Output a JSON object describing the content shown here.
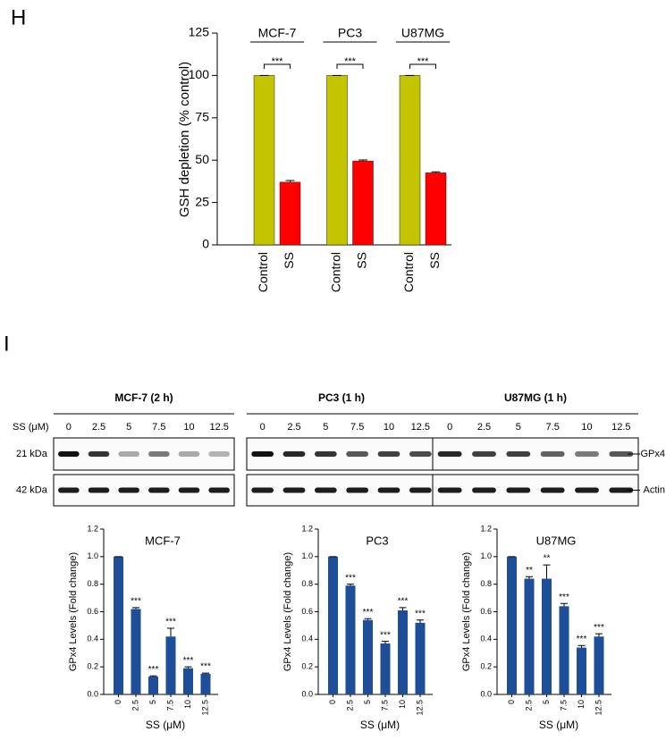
{
  "chart_data": [
    {
      "type": "grouped-bar",
      "panel": "H",
      "ylabel": "GSH depletion (% control)",
      "ylim": [
        0,
        125
      ],
      "yticks": [
        0,
        25,
        50,
        75,
        100,
        125
      ],
      "colors": [
        "#c4c400",
        "#ff0000"
      ],
      "groups": [
        {
          "label": "MCF-7",
          "categories": [
            "Control",
            "SS"
          ],
          "values": [
            100,
            37
          ],
          "errors": [
            0,
            1
          ],
          "significance": "***"
        },
        {
          "label": "PC3",
          "categories": [
            "Control",
            "SS"
          ],
          "values": [
            100,
            49.5
          ],
          "errors": [
            0,
            0.6
          ],
          "significance": "***"
        },
        {
          "label": "U87MG",
          "categories": [
            "Control",
            "SS"
          ],
          "values": [
            100,
            42.5
          ],
          "errors": [
            0,
            0.6
          ],
          "significance": "***"
        }
      ]
    },
    {
      "type": "bar",
      "title": "MCF-7",
      "xlabel": "SS (μM)",
      "ylabel": "GPx4 Levels (Fold change)",
      "color": "#1f4e99",
      "categories": [
        "0",
        "2.5",
        "5",
        "7.5",
        "10",
        "12.5"
      ],
      "values": [
        1.0,
        0.62,
        0.13,
        0.42,
        0.19,
        0.15
      ],
      "errors": [
        0,
        0.01,
        0.005,
        0.06,
        0.01,
        0.005
      ],
      "significance": [
        null,
        "***",
        "***",
        "***",
        "***",
        "***"
      ],
      "ylim": [
        0,
        1.2
      ],
      "yticks": [
        {
          "value": 0,
          "label": "0.0"
        },
        {
          "value": 0.2,
          "label": "0.2"
        },
        {
          "value": 0.4,
          "label": "0.4"
        },
        {
          "value": 0.6,
          "label": "0.6"
        },
        {
          "value": 0.8,
          "label": "0.8"
        },
        {
          "value": 1,
          "label": "1.0"
        },
        {
          "value": 1.2,
          "label": "1.2"
        }
      ]
    },
    {
      "type": "bar",
      "title": "PC3",
      "xlabel": "SS (μM)",
      "ylabel": "GPx4 Levels (Fold change)",
      "color": "#1f4e99",
      "categories": [
        "0",
        "2.5",
        "5",
        "7.5",
        "10",
        "12.5"
      ],
      "values": [
        1.0,
        0.79,
        0.54,
        0.37,
        0.61,
        0.52
      ],
      "errors": [
        0,
        0.01,
        0.01,
        0.015,
        0.02,
        0.02
      ],
      "significance": [
        null,
        "***",
        "***",
        "***",
        "***",
        "***"
      ],
      "ylim": [
        0,
        1.2
      ],
      "yticks": [
        {
          "value": 0,
          "label": "0.0"
        },
        {
          "value": 0.2,
          "label": "0.2"
        },
        {
          "value": 0.4,
          "label": "0.4"
        },
        {
          "value": 0.6,
          "label": "0.6"
        },
        {
          "value": 0.8,
          "label": "0.8"
        },
        {
          "value": 1,
          "label": "1.0"
        },
        {
          "value": 1.2,
          "label": "1.2"
        }
      ]
    },
    {
      "type": "bar",
      "title": "U87MG",
      "xlabel": "SS (μM)",
      "ylabel": "GPx4 Levels (Fold change)",
      "color": "#1f4e99",
      "categories": [
        "0",
        "2.5",
        "5",
        "7.5",
        "10",
        "12.5"
      ],
      "values": [
        1.0,
        0.84,
        0.84,
        0.64,
        0.34,
        0.42
      ],
      "errors": [
        0,
        0.015,
        0.1,
        0.02,
        0.015,
        0.02
      ],
      "significance": [
        null,
        "**",
        "**",
        "***",
        "***",
        "***"
      ],
      "ylim": [
        0,
        1.2
      ],
      "yticks": [
        {
          "value": 0,
          "label": "0.0"
        },
        {
          "value": 0.2,
          "label": "0.2"
        },
        {
          "value": 0.4,
          "label": "0.4"
        },
        {
          "value": 0.6,
          "label": "0.6"
        },
        {
          "value": 0.8,
          "label": "0.8"
        },
        {
          "value": 1,
          "label": "1.0"
        },
        {
          "value": 1.2,
          "label": "1.2"
        }
      ]
    }
  ],
  "blot": {
    "panel": "I",
    "dose_label": "SS (μM)",
    "cell_lines": [
      "MCF-7 (2 h)",
      "PC3 (1 h)",
      "U87MG (1 h)"
    ],
    "doses": [
      "0",
      "2.5",
      "5",
      "7.5",
      "10",
      "12.5"
    ],
    "rows": [
      {
        "size": "21 kDa",
        "protein": "GPx4"
      },
      {
        "size": "42 kDa",
        "protein": "Actin"
      }
    ]
  }
}
